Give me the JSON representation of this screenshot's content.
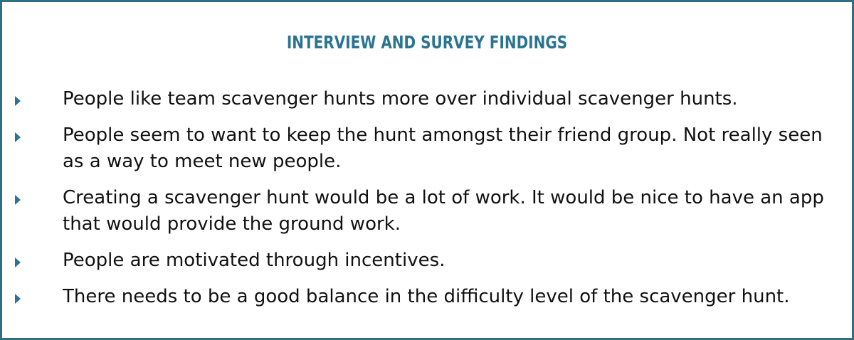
{
  "slide": {
    "title": "INTERVIEW AND SURVEY FINDINGS",
    "accent_color": "#2a7393",
    "border_color": "#2f6f86",
    "bullet_icon": "triangle-right-icon",
    "bullets": [
      "People like team scavenger hunts more over individual scavenger hunts.",
      "People seem to want to keep the hunt amongst their friend group. Not really seen as a way to meet new people.",
      "Creating a scavenger hunt would be a lot of work. It would be nice to have an app that would provide the ground work.",
      "People are motivated through incentives.",
      "There needs to be a good balance in the difficulty level of the scavenger hunt."
    ]
  }
}
